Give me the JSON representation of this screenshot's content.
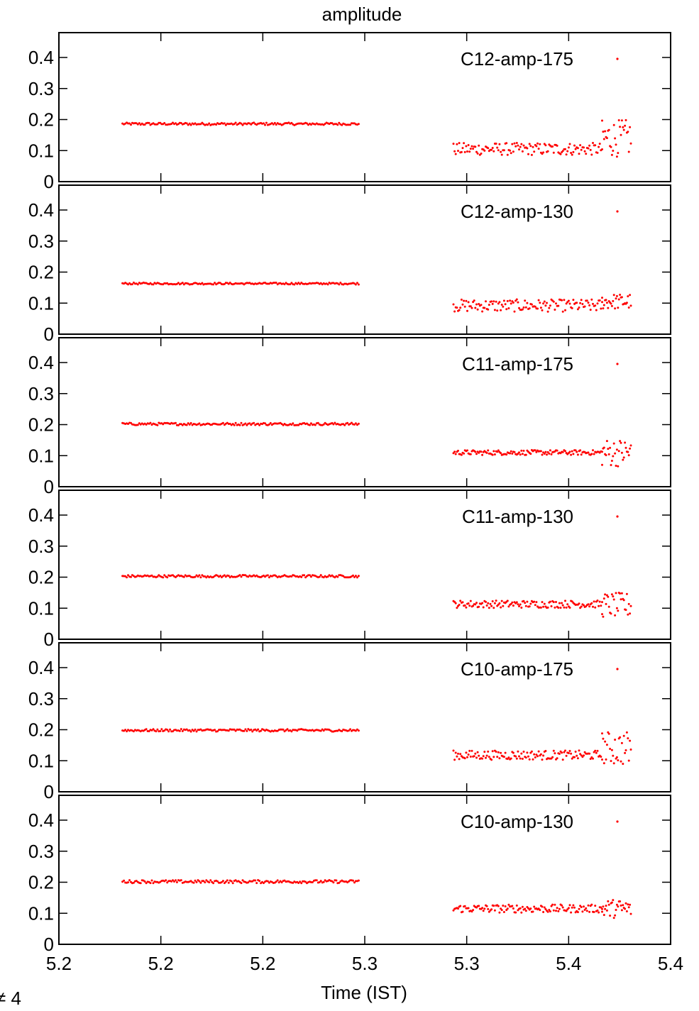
{
  "chart_data": {
    "type": "scatter",
    "title": "amplitude",
    "xlabel": "Time (IST)",
    "corner_text": "≠ 4",
    "x_ticks": [
      "5.2",
      "5.2",
      "5.2",
      "5.3",
      "5.3",
      "5.4",
      "5.4"
    ],
    "y_ticks": [
      "0",
      "0.1",
      "0.2",
      "0.3",
      "0.4"
    ],
    "marker_color": "#ff0000",
    "panels": [
      {
        "name": "C12-amp-175",
        "groups": [
          {
            "x0": 0.104,
            "x1": 0.49,
            "n": 170,
            "y": 0.186,
            "jitter": 0.004
          },
          {
            "x0": 0.645,
            "x1": 0.888,
            "n": 130,
            "y": 0.105,
            "jitter": 0.02
          },
          {
            "x0": 0.888,
            "x1": 0.935,
            "n": 30,
            "y": 0.14,
            "jitter": 0.06
          }
        ]
      },
      {
        "name": "C12-amp-130",
        "groups": [
          {
            "x0": 0.104,
            "x1": 0.49,
            "n": 170,
            "y": 0.163,
            "jitter": 0.003
          },
          {
            "x0": 0.645,
            "x1": 0.888,
            "n": 130,
            "y": 0.092,
            "jitter": 0.02
          },
          {
            "x0": 0.888,
            "x1": 0.935,
            "n": 30,
            "y": 0.105,
            "jitter": 0.025
          }
        ]
      },
      {
        "name": "C11-amp-175",
        "groups": [
          {
            "x0": 0.104,
            "x1": 0.49,
            "n": 170,
            "y": 0.202,
            "jitter": 0.004
          },
          {
            "x0": 0.645,
            "x1": 0.888,
            "n": 130,
            "y": 0.11,
            "jitter": 0.008
          },
          {
            "x0": 0.888,
            "x1": 0.935,
            "n": 30,
            "y": 0.11,
            "jitter": 0.045
          }
        ]
      },
      {
        "name": "C11-amp-130",
        "groups": [
          {
            "x0": 0.104,
            "x1": 0.49,
            "n": 170,
            "y": 0.203,
            "jitter": 0.004
          },
          {
            "x0": 0.645,
            "x1": 0.888,
            "n": 130,
            "y": 0.113,
            "jitter": 0.012
          },
          {
            "x0": 0.888,
            "x1": 0.935,
            "n": 30,
            "y": 0.11,
            "jitter": 0.04
          }
        ]
      },
      {
        "name": "C10-amp-175",
        "groups": [
          {
            "x0": 0.104,
            "x1": 0.49,
            "n": 170,
            "y": 0.198,
            "jitter": 0.004
          },
          {
            "x0": 0.645,
            "x1": 0.888,
            "n": 130,
            "y": 0.118,
            "jitter": 0.015
          },
          {
            "x0": 0.888,
            "x1": 0.935,
            "n": 30,
            "y": 0.14,
            "jitter": 0.055
          }
        ]
      },
      {
        "name": "C10-amp-130",
        "groups": [
          {
            "x0": 0.104,
            "x1": 0.49,
            "n": 170,
            "y": 0.202,
            "jitter": 0.005
          },
          {
            "x0": 0.645,
            "x1": 0.888,
            "n": 130,
            "y": 0.115,
            "jitter": 0.013
          },
          {
            "x0": 0.888,
            "x1": 0.935,
            "n": 30,
            "y": 0.115,
            "jitter": 0.03
          }
        ]
      }
    ]
  }
}
